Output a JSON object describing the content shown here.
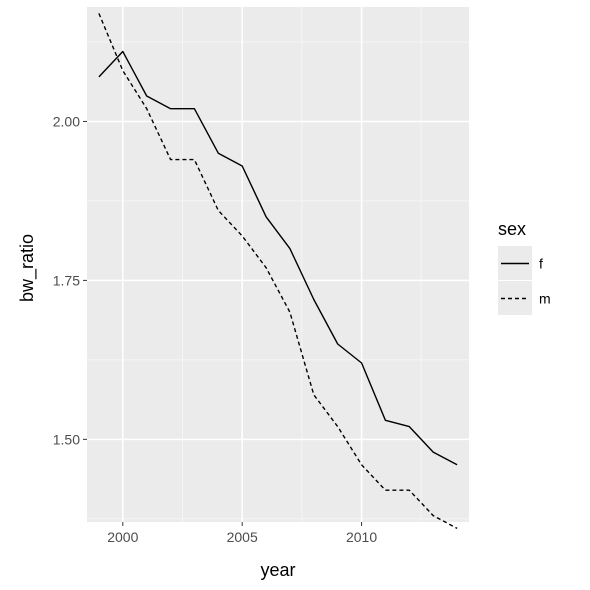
{
  "chart_data": {
    "type": "line",
    "xlabel": "year",
    "ylabel": "bw_ratio",
    "xlim": [
      1998.5,
      2014.5
    ],
    "ylim": [
      1.37,
      2.18
    ],
    "x_ticks": [
      2000,
      2005,
      2010
    ],
    "x_tick_labels": [
      "2000",
      "2005",
      "2010"
    ],
    "y_ticks": [
      1.5,
      1.75,
      2.0
    ],
    "y_tick_labels": [
      "1.50",
      "1.75",
      "2.00"
    ],
    "grid": true,
    "legend": {
      "title": "sex",
      "position": "right"
    },
    "x": [
      1999,
      2000,
      2001,
      2002,
      2003,
      2004,
      2005,
      2006,
      2007,
      2008,
      2009,
      2010,
      2011,
      2012,
      2013,
      2014
    ],
    "series": [
      {
        "name": "f",
        "linetype": "solid",
        "color": "#000000",
        "values": [
          2.07,
          2.11,
          2.04,
          2.02,
          2.02,
          1.95,
          1.93,
          1.85,
          1.8,
          1.72,
          1.65,
          1.62,
          1.53,
          1.52,
          1.48,
          1.46
        ]
      },
      {
        "name": "m",
        "linetype": "dashed",
        "color": "#000000",
        "values": [
          2.17,
          2.08,
          2.02,
          1.94,
          1.94,
          1.86,
          1.82,
          1.77,
          1.7,
          1.57,
          1.52,
          1.46,
          1.42,
          1.42,
          1.38,
          1.36
        ]
      }
    ]
  },
  "colors": {
    "panel_background": "#ebebeb",
    "grid_major": "#ffffff",
    "grid_minor": "#f5f5f5",
    "tick_text": "#4d4d4d",
    "tick_mark": "#333333"
  }
}
